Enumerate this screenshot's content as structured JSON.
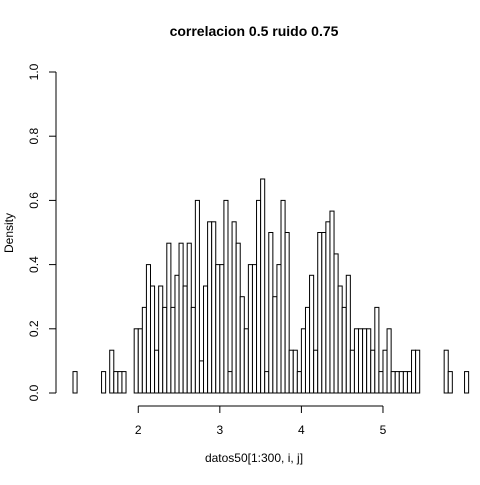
{
  "chart_data": {
    "type": "histogram",
    "title": "correlacion 0.5 ruido 0.75",
    "xlabel": "datos50[1:300, i, j]",
    "ylabel": "Density",
    "x_ticks": [
      "2",
      "3",
      "4",
      "5"
    ],
    "y_ticks": [
      "0.0",
      "0.2",
      "0.4",
      "0.6",
      "0.8",
      "1.0"
    ],
    "xlim": [
      1.2,
      5.65
    ],
    "ylim": [
      0,
      1.0
    ],
    "bin_start": 1.2,
    "bin_width": 0.05,
    "densities": [
      0.0667,
      0,
      0,
      0,
      0,
      0,
      0,
      0.0667,
      0,
      0.1333,
      0.0667,
      0.0667,
      0.0667,
      0,
      0,
      0.2,
      0.2,
      0.2667,
      0.4,
      0.3333,
      0.1333,
      0.3333,
      0.2667,
      0.4667,
      0.2667,
      0.3667,
      0.4667,
      0.3333,
      0.4667,
      0.2667,
      0.6,
      0.1,
      0.3333,
      0.5333,
      0.5333,
      0.4,
      0.4,
      0.6,
      0.0667,
      0.5333,
      0.4667,
      0.3,
      0.2,
      0.4,
      0.4,
      0.6,
      0.6667,
      0.0667,
      0.5,
      0.3,
      0.4,
      0.6,
      0.5,
      0.1333,
      0.1333,
      0.0667,
      0.2,
      0.2667,
      0.3667,
      0.1333,
      0.5,
      0.5,
      0.5333,
      0.5667,
      0.4333,
      0.3333,
      0.2667,
      0.3667,
      0.1333,
      0.2,
      0.2,
      0.2,
      0.2,
      0.1333,
      0.2667,
      0.0667,
      0.1333,
      0.2,
      0.0667,
      0.0667,
      0.0667,
      0.0667,
      0.0667,
      0.1333,
      0.1333,
      0,
      0,
      0,
      0,
      0,
      0,
      0.1333,
      0.0667,
      0,
      0,
      0,
      0.0667
    ],
    "grid": false,
    "legend": "none",
    "bar_fill": "#ffffff",
    "bar_stroke": "#000000"
  }
}
